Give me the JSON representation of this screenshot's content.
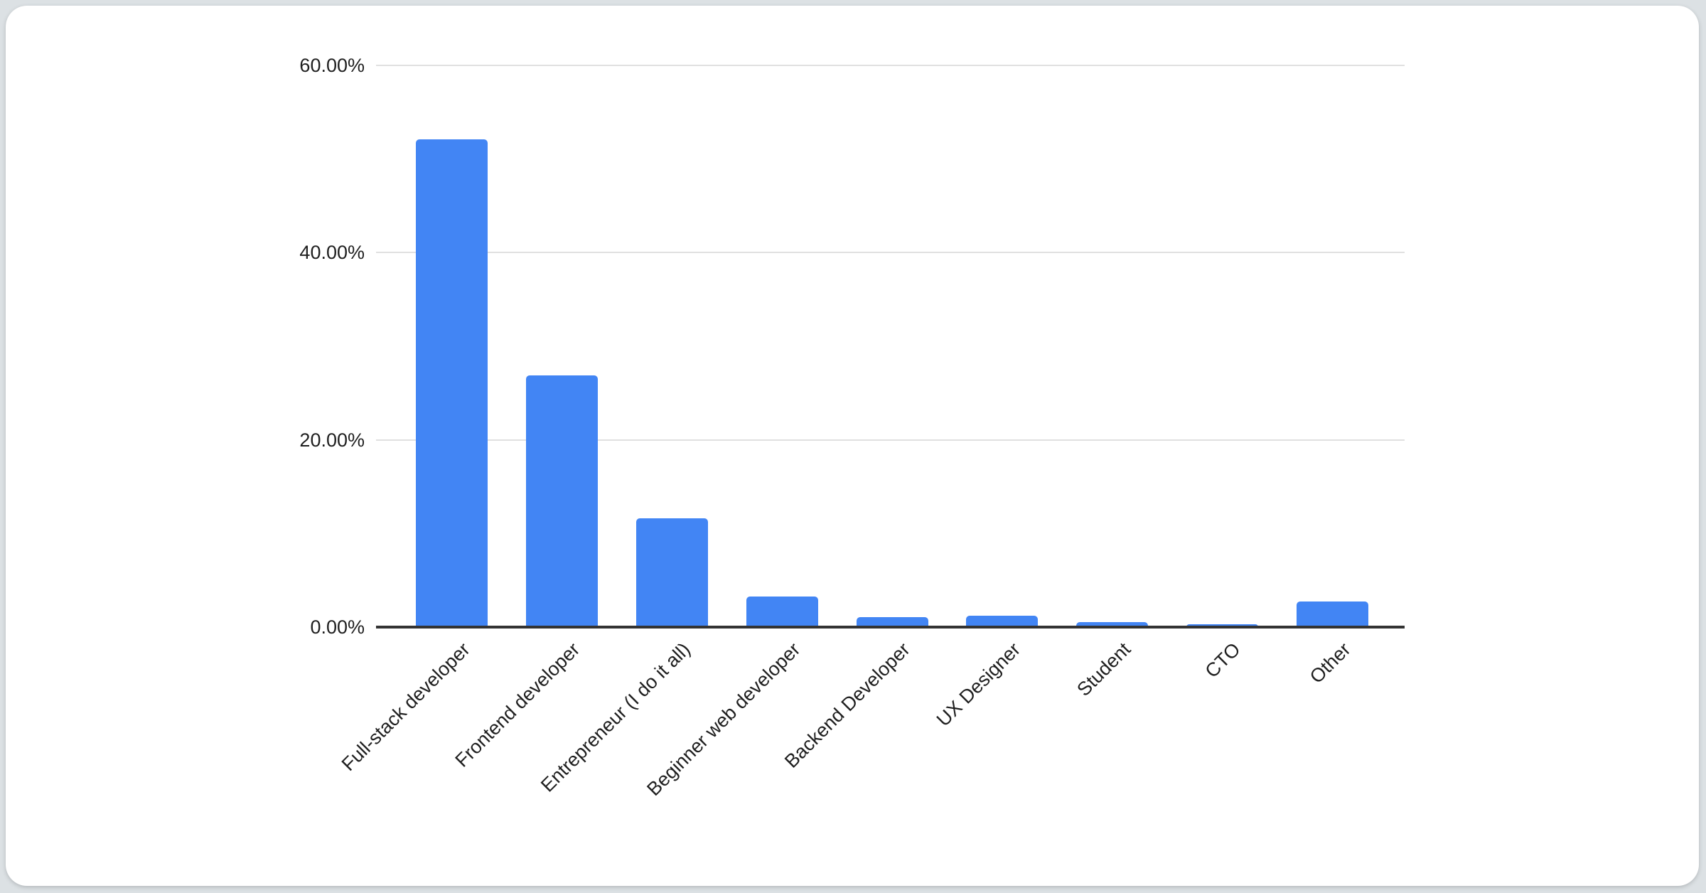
{
  "page": {
    "background_color": "#dce1e4",
    "card_color": "#ffffff"
  },
  "chart_data": {
    "type": "bar",
    "categories": [
      "Full-stack developer",
      "Frontend developer",
      "Entrepreneur (I do it all)",
      "Beginner web developer",
      "Backend Developer",
      "UX Designer",
      "Student",
      "CTO",
      "Other"
    ],
    "values": [
      52.1,
      26.9,
      11.6,
      3.3,
      1.1,
      1.2,
      0.5,
      0.3,
      2.7
    ],
    "yticks": [
      {
        "label": "0.00%",
        "value": 0
      },
      {
        "label": "20.00%",
        "value": 20
      },
      {
        "label": "40.00%",
        "value": 40
      },
      {
        "label": "60.00%",
        "value": 60
      }
    ],
    "ylim": [
      0,
      60
    ],
    "grid": "horizontal",
    "legend": "none",
    "x_label_rotation_deg": -45,
    "colors": {
      "bar": "#4285F4",
      "axis": "#333333",
      "gridline": "#e0e0e0",
      "text": "#1f1f1f"
    }
  }
}
